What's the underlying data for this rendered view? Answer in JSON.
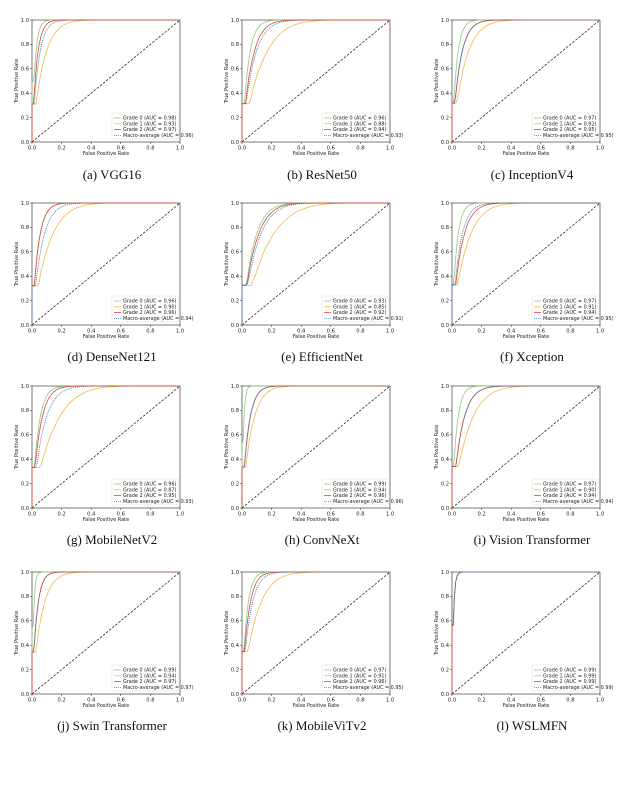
{
  "colors": {
    "grade0": "#8fc97f",
    "grade1": "#f2b84a",
    "grade2": "#d9483b",
    "macro": "#2f6fa8",
    "diag": "#111111"
  },
  "chart_data": [
    {
      "type": "line",
      "caption": "(a) VGG16",
      "xlabel": "False Positive Rate",
      "ylabel": "True Positive Rate",
      "xlim": [
        0.0,
        1.0
      ],
      "ylim": [
        0.0,
        1.0
      ],
      "xticks": [
        "0.0",
        "0.2",
        "0.4",
        "0.6",
        "0.8",
        "1.0"
      ],
      "yticks": [
        "0.0",
        "0.2",
        "0.4",
        "0.6",
        "0.8",
        "1.0"
      ],
      "series": [
        {
          "name": "Grade 0 (AUC = 0.98)",
          "auc": 0.98,
          "style": "solid",
          "color": "#8fc97f"
        },
        {
          "name": "Grade 1 (AUC = 0.93)",
          "auc": 0.93,
          "style": "solid",
          "color": "#f2b84a"
        },
        {
          "name": "Grade 2 (AUC = 0.97)",
          "auc": 0.97,
          "style": "solid",
          "color": "#d9483b"
        },
        {
          "name": "Macro-average (AUC = 0.96)",
          "auc": 0.96,
          "style": "dotted",
          "color": "#2f6fa8"
        }
      ]
    },
    {
      "type": "line",
      "caption": "(b) ResNet50",
      "xlabel": "False Positive Rate",
      "ylabel": "True Positive Rate",
      "xlim": [
        0.0,
        1.0
      ],
      "ylim": [
        0.0,
        1.0
      ],
      "xticks": [
        "0.0",
        "0.2",
        "0.4",
        "0.6",
        "0.8",
        "1.0"
      ],
      "yticks": [
        "0.0",
        "0.2",
        "0.4",
        "0.6",
        "0.8",
        "1.0"
      ],
      "series": [
        {
          "name": "Grade 0 (AUC = 0.96)",
          "auc": 0.96,
          "style": "solid",
          "color": "#8fc97f"
        },
        {
          "name": "Grade 1 (AUC = 0.88)",
          "auc": 0.88,
          "style": "solid",
          "color": "#f2b84a"
        },
        {
          "name": "Grade 2 (AUC = 0.94)",
          "auc": 0.94,
          "style": "solid",
          "color": "#d9483b"
        },
        {
          "name": "Macro-average (AUC = 0.93)",
          "auc": 0.93,
          "style": "dotted",
          "color": "#2f6fa8"
        }
      ]
    },
    {
      "type": "line",
      "caption": "(c) InceptionV4",
      "xlabel": "False Positive Rate",
      "ylabel": "True Positive Rate",
      "xlim": [
        0.0,
        1.0
      ],
      "ylim": [
        0.0,
        1.0
      ],
      "xticks": [
        "0.0",
        "0.2",
        "0.4",
        "0.6",
        "0.8",
        "1.0"
      ],
      "yticks": [
        "0.0",
        "0.2",
        "0.4",
        "0.6",
        "0.8",
        "1.0"
      ],
      "series": [
        {
          "name": "Grade 0 (AUC = 0.97)",
          "auc": 0.97,
          "style": "solid",
          "color": "#8fc97f"
        },
        {
          "name": "Grade 1 (AUC = 0.92)",
          "auc": 0.92,
          "style": "solid",
          "color": "#f2b84a"
        },
        {
          "name": "Grade 2 (AUC = 0.95)",
          "auc": 0.95,
          "style": "solid",
          "color": "#d9483b"
        },
        {
          "name": "Macro-average (AUC = 0.95)",
          "auc": 0.95,
          "style": "dotted",
          "color": "#2f6fa8"
        }
      ]
    },
    {
      "type": "line",
      "caption": "(d) DenseNet121",
      "xlabel": "False Positive Rate",
      "ylabel": "True Positive Rate",
      "xlim": [
        0.0,
        1.0
      ],
      "ylim": [
        0.0,
        1.0
      ],
      "xticks": [
        "0.0",
        "0.2",
        "0.4",
        "0.6",
        "0.8",
        "1.0"
      ],
      "yticks": [
        "0.0",
        "0.2",
        "0.4",
        "0.6",
        "0.8",
        "1.0"
      ],
      "series": [
        {
          "name": "Grade 0 (AUC = 0.96)",
          "auc": 0.96,
          "style": "solid",
          "color": "#8fc97f"
        },
        {
          "name": "Grade 1 (AUC = 0.90)",
          "auc": 0.9,
          "style": "solid",
          "color": "#f2b84a"
        },
        {
          "name": "Grade 2 (AUC = 0.96)",
          "auc": 0.96,
          "style": "solid",
          "color": "#d9483b"
        },
        {
          "name": "Macro-average (AUC = 0.94)",
          "auc": 0.94,
          "style": "dotted",
          "color": "#2f6fa8"
        }
      ]
    },
    {
      "type": "line",
      "caption": "(e) EfficientNet",
      "xlabel": "False Positive Rate",
      "ylabel": "True Positive Rate",
      "xlim": [
        0.0,
        1.0
      ],
      "ylim": [
        0.0,
        1.0
      ],
      "xticks": [
        "0.0",
        "0.2",
        "0.4",
        "0.6",
        "0.8",
        "1.0"
      ],
      "yticks": [
        "0.0",
        "0.2",
        "0.4",
        "0.6",
        "0.8",
        "1.0"
      ],
      "series": [
        {
          "name": "Grade 0 (AUC = 0.93)",
          "auc": 0.93,
          "style": "solid",
          "color": "#8fc97f"
        },
        {
          "name": "Grade 1 (AUC = 0.85)",
          "auc": 0.85,
          "style": "solid",
          "color": "#f2b84a"
        },
        {
          "name": "Grade 2 (AUC = 0.92)",
          "auc": 0.92,
          "style": "solid",
          "color": "#d9483b"
        },
        {
          "name": "Macro-average (AUC = 0.91)",
          "auc": 0.91,
          "style": "dotted",
          "color": "#2f6fa8"
        }
      ]
    },
    {
      "type": "line",
      "caption": "(f) Xception",
      "xlabel": "False Positive Rate",
      "ylabel": "True Positive Rate",
      "xlim": [
        0.0,
        1.0
      ],
      "ylim": [
        0.0,
        1.0
      ],
      "xticks": [
        "0.0",
        "0.2",
        "0.4",
        "0.6",
        "0.8",
        "1.0"
      ],
      "yticks": [
        "0.0",
        "0.2",
        "0.4",
        "0.6",
        "0.8",
        "1.0"
      ],
      "series": [
        {
          "name": "Grade 0 (AUC = 0.97)",
          "auc": 0.97,
          "style": "solid",
          "color": "#8fc97f"
        },
        {
          "name": "Grade 1 (AUC = 0.91)",
          "auc": 0.91,
          "style": "solid",
          "color": "#f2b84a"
        },
        {
          "name": "Grade 2 (AUC = 0.94)",
          "auc": 0.94,
          "style": "solid",
          "color": "#d9483b"
        },
        {
          "name": "Macro-average (AUC = 0.95)",
          "auc": 0.95,
          "style": "dotted",
          "color": "#2f6fa8"
        }
      ]
    },
    {
      "type": "line",
      "caption": "(g) MobileNetV2",
      "xlabel": "False Positive Rate",
      "ylabel": "True Positive Rate",
      "xlim": [
        0.0,
        1.0
      ],
      "ylim": [
        0.0,
        1.0
      ],
      "xticks": [
        "0.0",
        "0.2",
        "0.4",
        "0.6",
        "0.8",
        "1.0"
      ],
      "yticks": [
        "0.0",
        "0.2",
        "0.4",
        "0.6",
        "0.8",
        "1.0"
      ],
      "series": [
        {
          "name": "Grade 0 (AUC = 0.96)",
          "auc": 0.96,
          "style": "solid",
          "color": "#8fc97f"
        },
        {
          "name": "Grade 1 (AUC = 0.87)",
          "auc": 0.87,
          "style": "solid",
          "color": "#f2b84a"
        },
        {
          "name": "Grade 2 (AUC = 0.95)",
          "auc": 0.95,
          "style": "solid",
          "color": "#d9483b"
        },
        {
          "name": "Macro-average (AUC = 0.93)",
          "auc": 0.93,
          "style": "dotted",
          "color": "#2f6fa8"
        }
      ]
    },
    {
      "type": "line",
      "caption": "(h) ConvNeXt",
      "xlabel": "False Positive Rate",
      "ylabel": "True Positive Rate",
      "xlim": [
        0.0,
        1.0
      ],
      "ylim": [
        0.0,
        1.0
      ],
      "xticks": [
        "0.0",
        "0.2",
        "0.4",
        "0.6",
        "0.8",
        "1.0"
      ],
      "yticks": [
        "0.0",
        "0.2",
        "0.4",
        "0.6",
        "0.8",
        "1.0"
      ],
      "series": [
        {
          "name": "Grade 0 (AUC = 0.99)",
          "auc": 0.99,
          "style": "solid",
          "color": "#8fc97f"
        },
        {
          "name": "Grade 1 (AUC = 0.94)",
          "auc": 0.94,
          "style": "solid",
          "color": "#f2b84a"
        },
        {
          "name": "Grade 2 (AUC = 0.96)",
          "auc": 0.96,
          "style": "solid",
          "color": "#d9483b"
        },
        {
          "name": "Macro-average (AUC = 0.96)",
          "auc": 0.96,
          "style": "dotted",
          "color": "#2f6fa8"
        }
      ]
    },
    {
      "type": "line",
      "caption": "(i) Vision Transformer",
      "xlabel": "False Positive Rate",
      "ylabel": "True Positive Rate",
      "xlim": [
        0.0,
        1.0
      ],
      "ylim": [
        0.0,
        1.0
      ],
      "xticks": [
        "0.0",
        "0.2",
        "0.4",
        "0.6",
        "0.8",
        "1.0"
      ],
      "yticks": [
        "0.0",
        "0.2",
        "0.4",
        "0.6",
        "0.8",
        "1.0"
      ],
      "series": [
        {
          "name": "Grade 0 (AUC = 0.97)",
          "auc": 0.97,
          "style": "solid",
          "color": "#8fc97f"
        },
        {
          "name": "Grade 1 (AUC = 0.90)",
          "auc": 0.9,
          "style": "solid",
          "color": "#f2b84a"
        },
        {
          "name": "Grade 2 (AUC = 0.94)",
          "auc": 0.94,
          "style": "solid",
          "color": "#d9483b"
        },
        {
          "name": "Macro-average (AUC = 0.94)",
          "auc": 0.94,
          "style": "dotted",
          "color": "#2f6fa8"
        }
      ]
    },
    {
      "type": "line",
      "caption": "(j) Swin Transformer",
      "xlabel": "False Positive Rate",
      "ylabel": "True Positive Rate",
      "xlim": [
        0.0,
        1.0
      ],
      "ylim": [
        0.0,
        1.0
      ],
      "xticks": [
        "0.0",
        "0.2",
        "0.4",
        "0.6",
        "0.8",
        "1.0"
      ],
      "yticks": [
        "0.0",
        "0.2",
        "0.4",
        "0.6",
        "0.8",
        "1.0"
      ],
      "series": [
        {
          "name": "Grade 0 (AUC = 0.99)",
          "auc": 0.99,
          "style": "solid",
          "color": "#8fc97f"
        },
        {
          "name": "Grade 1 (AUC = 0.94)",
          "auc": 0.94,
          "style": "solid",
          "color": "#f2b84a"
        },
        {
          "name": "Grade 2 (AUC = 0.97)",
          "auc": 0.97,
          "style": "solid",
          "color": "#d9483b"
        },
        {
          "name": "Macro-average (AUC = 0.97)",
          "auc": 0.97,
          "style": "dotted",
          "color": "#2f6fa8"
        }
      ]
    },
    {
      "type": "line",
      "caption": "(k) MobileViTv2",
      "xlabel": "False Positive Rate",
      "ylabel": "True Positive Rate",
      "xlim": [
        0.0,
        1.0
      ],
      "ylim": [
        0.0,
        1.0
      ],
      "xticks": [
        "0.0",
        "0.2",
        "0.4",
        "0.6",
        "0.8",
        "1.0"
      ],
      "yticks": [
        "0.0",
        "0.2",
        "0.4",
        "0.6",
        "0.8",
        "1.0"
      ],
      "series": [
        {
          "name": "Grade 0 (AUC = 0.97)",
          "auc": 0.97,
          "style": "solid",
          "color": "#8fc97f"
        },
        {
          "name": "Grade 1 (AUC = 0.91)",
          "auc": 0.91,
          "style": "solid",
          "color": "#f2b84a"
        },
        {
          "name": "Grade 2 (AUC = 0.96)",
          "auc": 0.96,
          "style": "solid",
          "color": "#d9483b"
        },
        {
          "name": "Macro-average (AUC = 0.95)",
          "auc": 0.95,
          "style": "dotted",
          "color": "#2f6fa8"
        }
      ]
    },
    {
      "type": "line",
      "caption": "(l) WSLMFN",
      "xlabel": "False Positive Rate",
      "ylabel": "True Positive Rate",
      "xlim": [
        0.0,
        1.0
      ],
      "ylim": [
        0.0,
        1.0
      ],
      "xticks": [
        "0.0",
        "0.2",
        "0.4",
        "0.6",
        "0.8",
        "1.0"
      ],
      "yticks": [
        "0.0",
        "0.2",
        "0.4",
        "0.6",
        "0.8",
        "1.0"
      ],
      "series": [
        {
          "name": "Grade 0 (AUC = 0.99)",
          "auc": 0.99,
          "style": "solid",
          "color": "#8fc97f"
        },
        {
          "name": "Grade 1 (AUC = 0.99)",
          "auc": 0.99,
          "style": "solid",
          "color": "#f2b84a"
        },
        {
          "name": "Grade 2 (AUC = 0.99)",
          "auc": 0.99,
          "style": "solid",
          "color": "#d9483b"
        },
        {
          "name": "Macro-average (AUC = 0.99)",
          "auc": 0.99,
          "style": "dotted",
          "color": "#2f6fa8"
        }
      ]
    }
  ]
}
